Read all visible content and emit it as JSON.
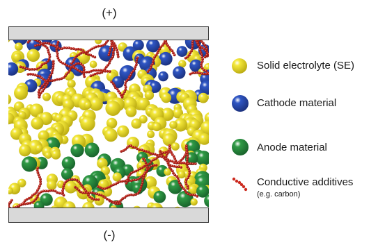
{
  "terminals": {
    "positive": "(+)",
    "negative": "(-)"
  },
  "legend": [
    {
      "key": "se",
      "label": "Solid electrolyte (SE)",
      "color": "#f4e83a",
      "icon": "yellow-sphere-icon"
    },
    {
      "key": "cathode",
      "label": "Cathode material",
      "color": "#2f56c4",
      "icon": "blue-sphere-icon"
    },
    {
      "key": "anode",
      "label": "Anode material",
      "color": "#2f9a45",
      "icon": "green-sphere-icon"
    },
    {
      "key": "additive",
      "label": "Conductive additives",
      "sublabel": "(e.g. carbon)",
      "color": "#cc2a1f",
      "icon": "red-dot-chain-icon"
    }
  ],
  "colors": {
    "collector": "#d9d9d9",
    "collector_border": "#3c3c3c",
    "se_dark": "#b8a810",
    "cathode_dark": "#1a2f7a",
    "anode_dark": "#17602a",
    "additive_dark": "#7a1410"
  }
}
